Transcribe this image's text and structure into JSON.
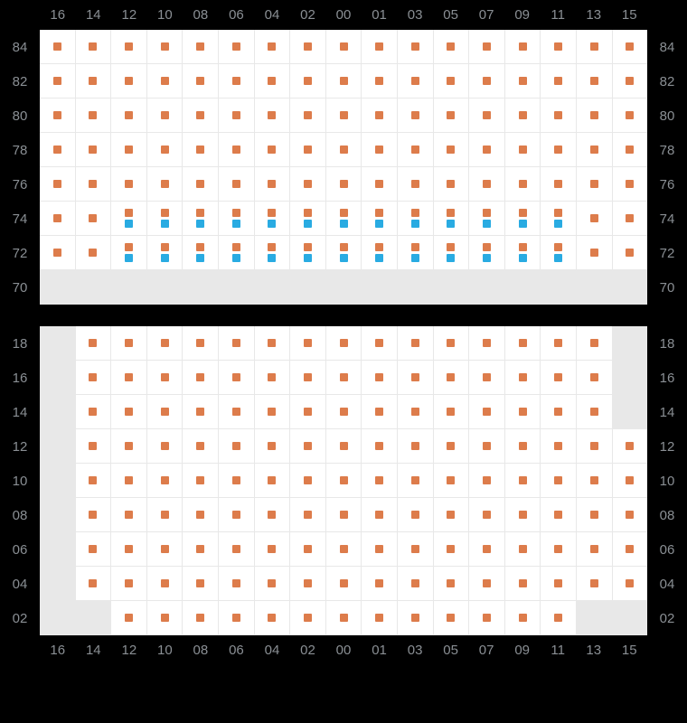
{
  "colors": {
    "orange": "#dd7c4b",
    "blue": "#29abe2",
    "blank_bg": "#e8e8e8",
    "cell_bg": "#ffffff",
    "grid": "#e8e8e8",
    "label": "#8a8f94",
    "page_bg": "#000000"
  },
  "columns": [
    "16",
    "14",
    "12",
    "10",
    "08",
    "06",
    "04",
    "02",
    "00",
    "01",
    "03",
    "05",
    "07",
    "09",
    "11",
    "13",
    "15"
  ],
  "sections": [
    {
      "id": "top",
      "show_top_headers": true,
      "show_bottom_headers": false,
      "rows": [
        {
          "label": "84",
          "cells": [
            [
              "o"
            ],
            [
              "o"
            ],
            [
              "o"
            ],
            [
              "o"
            ],
            [
              "o"
            ],
            [
              "o"
            ],
            [
              "o"
            ],
            [
              "o"
            ],
            [
              "o"
            ],
            [
              "o"
            ],
            [
              "o"
            ],
            [
              "o"
            ],
            [
              "o"
            ],
            [
              "o"
            ],
            [
              "o"
            ],
            [
              "o"
            ],
            [
              "o"
            ]
          ]
        },
        {
          "label": "82",
          "cells": [
            [
              "o"
            ],
            [
              "o"
            ],
            [
              "o"
            ],
            [
              "o"
            ],
            [
              "o"
            ],
            [
              "o"
            ],
            [
              "o"
            ],
            [
              "o"
            ],
            [
              "o"
            ],
            [
              "o"
            ],
            [
              "o"
            ],
            [
              "o"
            ],
            [
              "o"
            ],
            [
              "o"
            ],
            [
              "o"
            ],
            [
              "o"
            ],
            [
              "o"
            ]
          ]
        },
        {
          "label": "80",
          "cells": [
            [
              "o"
            ],
            [
              "o"
            ],
            [
              "o"
            ],
            [
              "o"
            ],
            [
              "o"
            ],
            [
              "o"
            ],
            [
              "o"
            ],
            [
              "o"
            ],
            [
              "o"
            ],
            [
              "o"
            ],
            [
              "o"
            ],
            [
              "o"
            ],
            [
              "o"
            ],
            [
              "o"
            ],
            [
              "o"
            ],
            [
              "o"
            ],
            [
              "o"
            ]
          ]
        },
        {
          "label": "78",
          "cells": [
            [
              "o"
            ],
            [
              "o"
            ],
            [
              "o"
            ],
            [
              "o"
            ],
            [
              "o"
            ],
            [
              "o"
            ],
            [
              "o"
            ],
            [
              "o"
            ],
            [
              "o"
            ],
            [
              "o"
            ],
            [
              "o"
            ],
            [
              "o"
            ],
            [
              "o"
            ],
            [
              "o"
            ],
            [
              "o"
            ],
            [
              "o"
            ],
            [
              "o"
            ]
          ]
        },
        {
          "label": "76",
          "cells": [
            [
              "o"
            ],
            [
              "o"
            ],
            [
              "o"
            ],
            [
              "o"
            ],
            [
              "o"
            ],
            [
              "o"
            ],
            [
              "o"
            ],
            [
              "o"
            ],
            [
              "o"
            ],
            [
              "o"
            ],
            [
              "o"
            ],
            [
              "o"
            ],
            [
              "o"
            ],
            [
              "o"
            ],
            [
              "o"
            ],
            [
              "o"
            ],
            [
              "o"
            ]
          ]
        },
        {
          "label": "74",
          "cells": [
            [
              "o"
            ],
            [
              "o"
            ],
            [
              "o",
              "b"
            ],
            [
              "o",
              "b"
            ],
            [
              "o",
              "b"
            ],
            [
              "o",
              "b"
            ],
            [
              "o",
              "b"
            ],
            [
              "o",
              "b"
            ],
            [
              "o",
              "b"
            ],
            [
              "o",
              "b"
            ],
            [
              "o",
              "b"
            ],
            [
              "o",
              "b"
            ],
            [
              "o",
              "b"
            ],
            [
              "o",
              "b"
            ],
            [
              "o",
              "b"
            ],
            [
              "o"
            ],
            [
              "o"
            ]
          ]
        },
        {
          "label": "72",
          "cells": [
            [
              "o"
            ],
            [
              "o"
            ],
            [
              "o",
              "b"
            ],
            [
              "o",
              "b"
            ],
            [
              "o",
              "b"
            ],
            [
              "o",
              "b"
            ],
            [
              "o",
              "b"
            ],
            [
              "o",
              "b"
            ],
            [
              "o",
              "b"
            ],
            [
              "o",
              "b"
            ],
            [
              "o",
              "b"
            ],
            [
              "o",
              "b"
            ],
            [
              "o",
              "b"
            ],
            [
              "o",
              "b"
            ],
            [
              "o",
              "b"
            ],
            [
              "o"
            ],
            [
              "o"
            ]
          ]
        },
        {
          "label": "70",
          "cells": [
            "blank",
            "blank",
            "blank",
            "blank",
            "blank",
            "blank",
            "blank",
            "blank",
            "blank",
            "blank",
            "blank",
            "blank",
            "blank",
            "blank",
            "blank",
            "blank",
            "blank"
          ]
        }
      ]
    },
    {
      "id": "bottom",
      "show_top_headers": false,
      "show_bottom_headers": true,
      "rows": [
        {
          "label": "18",
          "cells": [
            "blank",
            [
              "o"
            ],
            [
              "o"
            ],
            [
              "o"
            ],
            [
              "o"
            ],
            [
              "o"
            ],
            [
              "o"
            ],
            [
              "o"
            ],
            [
              "o"
            ],
            [
              "o"
            ],
            [
              "o"
            ],
            [
              "o"
            ],
            [
              "o"
            ],
            [
              "o"
            ],
            [
              "o"
            ],
            [
              "o"
            ],
            "blank"
          ]
        },
        {
          "label": "16",
          "cells": [
            "blank",
            [
              "o"
            ],
            [
              "o"
            ],
            [
              "o"
            ],
            [
              "o"
            ],
            [
              "o"
            ],
            [
              "o"
            ],
            [
              "o"
            ],
            [
              "o"
            ],
            [
              "o"
            ],
            [
              "o"
            ],
            [
              "o"
            ],
            [
              "o"
            ],
            [
              "o"
            ],
            [
              "o"
            ],
            [
              "o"
            ],
            "blank"
          ]
        },
        {
          "label": "14",
          "cells": [
            "blank",
            [
              "o"
            ],
            [
              "o"
            ],
            [
              "o"
            ],
            [
              "o"
            ],
            [
              "o"
            ],
            [
              "o"
            ],
            [
              "o"
            ],
            [
              "o"
            ],
            [
              "o"
            ],
            [
              "o"
            ],
            [
              "o"
            ],
            [
              "o"
            ],
            [
              "o"
            ],
            [
              "o"
            ],
            [
              "o"
            ],
            "blank"
          ]
        },
        {
          "label": "12",
          "cells": [
            "blank",
            [
              "o"
            ],
            [
              "o"
            ],
            [
              "o"
            ],
            [
              "o"
            ],
            [
              "o"
            ],
            [
              "o"
            ],
            [
              "o"
            ],
            [
              "o"
            ],
            [
              "o"
            ],
            [
              "o"
            ],
            [
              "o"
            ],
            [
              "o"
            ],
            [
              "o"
            ],
            [
              "o"
            ],
            [
              "o"
            ],
            [
              "o"
            ]
          ]
        },
        {
          "label": "10",
          "cells": [
            "blank",
            [
              "o"
            ],
            [
              "o"
            ],
            [
              "o"
            ],
            [
              "o"
            ],
            [
              "o"
            ],
            [
              "o"
            ],
            [
              "o"
            ],
            [
              "o"
            ],
            [
              "o"
            ],
            [
              "o"
            ],
            [
              "o"
            ],
            [
              "o"
            ],
            [
              "o"
            ],
            [
              "o"
            ],
            [
              "o"
            ],
            [
              "o"
            ]
          ]
        },
        {
          "label": "08",
          "cells": [
            "blank",
            [
              "o"
            ],
            [
              "o"
            ],
            [
              "o"
            ],
            [
              "o"
            ],
            [
              "o"
            ],
            [
              "o"
            ],
            [
              "o"
            ],
            [
              "o"
            ],
            [
              "o"
            ],
            [
              "o"
            ],
            [
              "o"
            ],
            [
              "o"
            ],
            [
              "o"
            ],
            [
              "o"
            ],
            [
              "o"
            ],
            [
              "o"
            ]
          ]
        },
        {
          "label": "06",
          "cells": [
            "blank",
            [
              "o"
            ],
            [
              "o"
            ],
            [
              "o"
            ],
            [
              "o"
            ],
            [
              "o"
            ],
            [
              "o"
            ],
            [
              "o"
            ],
            [
              "o"
            ],
            [
              "o"
            ],
            [
              "o"
            ],
            [
              "o"
            ],
            [
              "o"
            ],
            [
              "o"
            ],
            [
              "o"
            ],
            [
              "o"
            ],
            [
              "o"
            ]
          ]
        },
        {
          "label": "04",
          "cells": [
            "blank",
            [
              "o"
            ],
            [
              "o"
            ],
            [
              "o"
            ],
            [
              "o"
            ],
            [
              "o"
            ],
            [
              "o"
            ],
            [
              "o"
            ],
            [
              "o"
            ],
            [
              "o"
            ],
            [
              "o"
            ],
            [
              "o"
            ],
            [
              "o"
            ],
            [
              "o"
            ],
            [
              "o"
            ],
            [
              "o"
            ],
            [
              "o"
            ]
          ]
        },
        {
          "label": "02",
          "cells": [
            "blank",
            "blank",
            [
              "o"
            ],
            [
              "o"
            ],
            [
              "o"
            ],
            [
              "o"
            ],
            [
              "o"
            ],
            [
              "o"
            ],
            [
              "o"
            ],
            [
              "o"
            ],
            [
              "o"
            ],
            [
              "o"
            ],
            [
              "o"
            ],
            [
              "o"
            ],
            [
              "o"
            ],
            "blank",
            "blank"
          ]
        }
      ]
    }
  ]
}
